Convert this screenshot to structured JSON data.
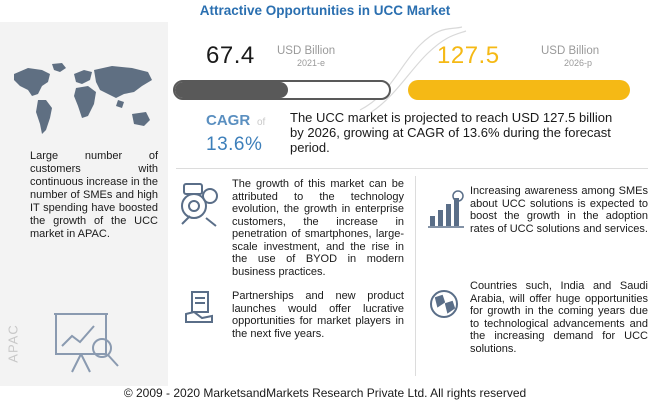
{
  "title": "Attractive Opportunities in UCC Market",
  "left_panel": {
    "text": "Large number of customers with continuous increase in the number of SMEs and high IT spending have boosted the growth of the UCC market in APAC.",
    "region_label": "APAC",
    "icons": [
      "world-map-icon",
      "presentation-board-icon"
    ]
  },
  "stats": {
    "current": {
      "value": "67.4",
      "unit": "USD Billion",
      "year": "2021-e",
      "bar_color": "#595959",
      "bar_fill_fraction": 0.53
    },
    "forecast": {
      "value": "127.5",
      "unit": "USD Billion",
      "year": "2026-p",
      "bar_color": "#f5b915",
      "bar_fill_fraction": 1.0
    }
  },
  "cagr": {
    "label": "CAGR",
    "of": "of",
    "value": "13.6%",
    "text": "The UCC market is projected to reach USD 127.5 billion by 2026, growing at CAGR of 13.6% during the forecast period."
  },
  "insights": [
    {
      "icon": "technology-gears-icon",
      "text": "The growth of this market can be attributed to the technology evolution, the growth in enterprise customers, the increase in penetration of smartphones, large-scale investment, and the rise in the use of BYOD in modern business practices."
    },
    {
      "icon": "growth-chart-icon",
      "text": "Increasing awareness among SMEs about UCC solutions is expected to boost the growth in the adoption rates of UCC solutions and services."
    },
    {
      "icon": "handshake-document-icon",
      "text": "Partnerships and new product launches would offer lucrative opportunities for market players in the next five years."
    },
    {
      "icon": "globe-icon",
      "text": "Countries such, India and Saudi Arabia, will offer huge opportunities for growth in the coming years due to technological advancements and the increasing demand for UCC solutions."
    }
  ],
  "footer": "© 2009 - 2020 MarketsandMarkets Research Private Ltd. All rights reserved",
  "colors": {
    "title": "#2a6fb0",
    "accent_blue": "#3d7fba",
    "dark_bar": "#595959",
    "yellow_bar": "#f5b915"
  }
}
